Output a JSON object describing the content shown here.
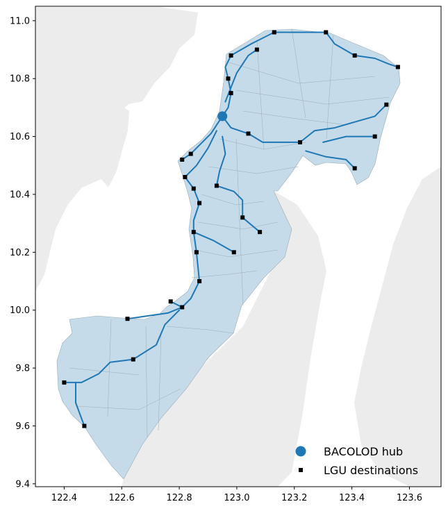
{
  "chart_data": {
    "type": "map",
    "title": "",
    "xlabel": "",
    "ylabel": "",
    "xlim": [
      122.3,
      123.71
    ],
    "ylim": [
      9.39,
      11.05
    ],
    "x_ticks": [
      122.4,
      122.6,
      122.8,
      123.0,
      123.2,
      123.4,
      123.6
    ],
    "y_ticks": [
      9.4,
      9.6,
      9.8,
      10.0,
      10.2,
      10.4,
      10.6,
      10.8,
      11.0
    ],
    "x_tick_labels": [
      "122.4",
      "122.6",
      "122.8",
      "123.0",
      "123.2",
      "123.4",
      "123.6"
    ],
    "y_tick_labels": [
      "9.4",
      "9.6",
      "9.8",
      "10.0",
      "10.2",
      "10.4",
      "10.6",
      "10.8",
      "11.0"
    ],
    "colors": {
      "region_fill": "#c5dbea",
      "region_edge": "#9aaab5",
      "background_land": "#ececec",
      "route": "#1f77b4",
      "hub": "#1f77b4",
      "destination": "#000000"
    },
    "hub": {
      "name": "BACOLOD",
      "lon": 122.95,
      "lat": 10.67
    },
    "destinations": [
      [
        123.13,
        10.96
      ],
      [
        123.31,
        10.96
      ],
      [
        123.07,
        10.9
      ],
      [
        122.98,
        10.88
      ],
      [
        123.41,
        10.88
      ],
      [
        123.56,
        10.84
      ],
      [
        122.97,
        10.8
      ],
      [
        122.98,
        10.75
      ],
      [
        123.52,
        10.71
      ],
      [
        123.04,
        10.61
      ],
      [
        123.48,
        10.6
      ],
      [
        123.22,
        10.58
      ],
      [
        122.84,
        10.54
      ],
      [
        122.81,
        10.52
      ],
      [
        123.41,
        10.49
      ],
      [
        122.82,
        10.46
      ],
      [
        122.93,
        10.43
      ],
      [
        122.85,
        10.42
      ],
      [
        122.87,
        10.37
      ],
      [
        123.02,
        10.32
      ],
      [
        122.85,
        10.27
      ],
      [
        123.08,
        10.27
      ],
      [
        122.99,
        10.2
      ],
      [
        122.86,
        10.2
      ],
      [
        122.87,
        10.1
      ],
      [
        122.77,
        10.03
      ],
      [
        122.81,
        10.01
      ],
      [
        122.62,
        9.97
      ],
      [
        122.64,
        9.83
      ],
      [
        122.4,
        9.75
      ],
      [
        122.47,
        9.6
      ]
    ],
    "routes": [
      [
        [
          122.95,
          10.67
        ],
        [
          122.97,
          10.7
        ],
        [
          122.98,
          10.75
        ],
        [
          122.97,
          10.8
        ],
        [
          122.96,
          10.84
        ],
        [
          122.98,
          10.88
        ]
      ],
      [
        [
          122.96,
          10.72
        ],
        [
          123.0,
          10.82
        ],
        [
          123.04,
          10.88
        ],
        [
          123.07,
          10.9
        ]
      ],
      [
        [
          122.98,
          10.88
        ],
        [
          123.05,
          10.92
        ],
        [
          123.13,
          10.96
        ],
        [
          123.22,
          10.96
        ],
        [
          123.31,
          10.96
        ]
      ],
      [
        [
          123.31,
          10.96
        ],
        [
          123.34,
          10.92
        ],
        [
          123.41,
          10.88
        ],
        [
          123.48,
          10.87
        ],
        [
          123.53,
          10.85
        ],
        [
          123.56,
          10.84
        ]
      ],
      [
        [
          122.95,
          10.67
        ],
        [
          122.98,
          10.63
        ],
        [
          123.04,
          10.61
        ],
        [
          123.09,
          10.58
        ],
        [
          123.16,
          10.58
        ],
        [
          123.22,
          10.58
        ]
      ],
      [
        [
          123.22,
          10.58
        ],
        [
          123.27,
          10.62
        ],
        [
          123.34,
          10.63
        ],
        [
          123.41,
          10.65
        ],
        [
          123.48,
          10.67
        ],
        [
          123.52,
          10.71
        ]
      ],
      [
        [
          123.24,
          10.55
        ],
        [
          123.31,
          10.53
        ],
        [
          123.38,
          10.52
        ],
        [
          123.41,
          10.49
        ]
      ],
      [
        [
          123.3,
          10.58
        ],
        [
          123.38,
          10.6
        ],
        [
          123.48,
          10.6
        ]
      ],
      [
        [
          122.95,
          10.67
        ],
        [
          122.91,
          10.61
        ],
        [
          122.87,
          10.57
        ],
        [
          122.84,
          10.54
        ],
        [
          122.81,
          10.52
        ]
      ],
      [
        [
          122.93,
          10.62
        ],
        [
          122.9,
          10.56
        ],
        [
          122.86,
          10.5
        ],
        [
          122.82,
          10.46
        ],
        [
          122.85,
          10.42
        ],
        [
          122.87,
          10.37
        ]
      ],
      [
        [
          122.95,
          10.6
        ],
        [
          122.96,
          10.54
        ],
        [
          122.94,
          10.48
        ],
        [
          122.93,
          10.43
        ],
        [
          122.99,
          10.41
        ],
        [
          123.02,
          10.38
        ],
        [
          123.02,
          10.32
        ],
        [
          123.08,
          10.27
        ]
      ],
      [
        [
          122.87,
          10.37
        ],
        [
          122.85,
          10.31
        ],
        [
          122.85,
          10.27
        ],
        [
          122.86,
          10.2
        ],
        [
          122.87,
          10.1
        ],
        [
          122.84,
          10.04
        ],
        [
          122.81,
          10.01
        ],
        [
          122.77,
          10.03
        ]
      ],
      [
        [
          122.85,
          10.27
        ],
        [
          122.92,
          10.24
        ],
        [
          122.99,
          10.2
        ]
      ],
      [
        [
          122.81,
          10.01
        ],
        [
          122.76,
          9.99
        ],
        [
          122.69,
          9.98
        ],
        [
          122.62,
          9.97
        ]
      ],
      [
        [
          122.8,
          10.0
        ],
        [
          122.75,
          9.95
        ],
        [
          122.72,
          9.88
        ],
        [
          122.64,
          9.83
        ],
        [
          122.56,
          9.82
        ],
        [
          122.52,
          9.78
        ],
        [
          122.46,
          9.75
        ],
        [
          122.4,
          9.75
        ]
      ],
      [
        [
          122.44,
          9.75
        ],
        [
          122.44,
          9.68
        ],
        [
          122.47,
          9.6
        ]
      ]
    ],
    "legend": {
      "position": "lower-right",
      "entries": [
        {
          "label": "BACOLOD hub",
          "marker": "circle"
        },
        {
          "label": "LGU destinations",
          "marker": "square"
        }
      ]
    }
  }
}
